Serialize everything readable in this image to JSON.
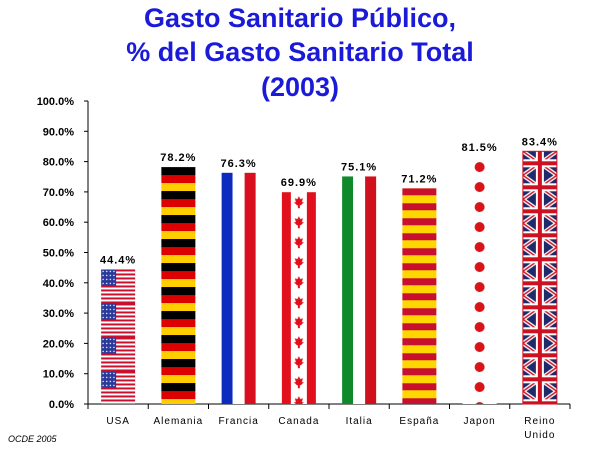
{
  "chart_data": {
    "type": "bar",
    "title_lines": [
      "Gasto Sanitario Público,",
      "% del Gasto Sanitario Total",
      "(2003)"
    ],
    "categories": [
      {
        "label": [
          "USA"
        ],
        "value": 44.4,
        "value_label": "44.4%",
        "pattern": "usa"
      },
      {
        "label": [
          "Alemania"
        ],
        "value": 78.2,
        "value_label": "78.2%",
        "pattern": "germany"
      },
      {
        "label": [
          "Francia"
        ],
        "value": 76.3,
        "value_label": "76.3%",
        "pattern": "france"
      },
      {
        "label": [
          "Canada"
        ],
        "value": 69.9,
        "value_label": "69.9%",
        "pattern": "canada"
      },
      {
        "label": [
          "Italia"
        ],
        "value": 75.1,
        "value_label": "75.1%",
        "pattern": "italy"
      },
      {
        "label": [
          "España"
        ],
        "value": 71.2,
        "value_label": "71.2%",
        "pattern": "spain"
      },
      {
        "label": [
          "Japon"
        ],
        "value": 81.5,
        "value_label": "81.5%",
        "pattern": "japan"
      },
      {
        "label": [
          "Reino",
          "Unido"
        ],
        "value": 83.4,
        "value_label": "83.4%",
        "pattern": "uk"
      }
    ],
    "y_ticks": [
      "0.0%",
      "10.0%",
      "20.0%",
      "30.0%",
      "40.0%",
      "50.0%",
      "60.0%",
      "70.0%",
      "80.0%",
      "90.0%",
      "100.0%"
    ],
    "ylim": [
      0,
      100
    ],
    "grid": false,
    "legend": "none"
  },
  "source_note": "OCDE 2005",
  "colors": {
    "title": "#1a1ad8",
    "usa_red": "#c8102e",
    "usa_blue": "#2b3a9a",
    "germany_black": "#000000",
    "germany_red": "#dd0000",
    "germany_gold": "#ffce00",
    "france_blue": "#0a2bbd",
    "france_red": "#d80f1f",
    "canada_red": "#e0101c",
    "italy_green": "#0f8a2a",
    "italy_red": "#d0101c",
    "spain_red": "#c8102e",
    "spain_yellow": "#ffd700",
    "japan_red": "#d81418",
    "uk_blue": "#1f2a6a",
    "uk_red": "#cf1020"
  }
}
